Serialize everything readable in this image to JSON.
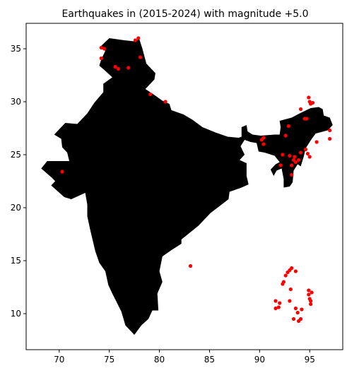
{
  "chart_data": {
    "type": "scatter",
    "title": "Earthquakes in (2015-2024) with magnitude +5.0",
    "xlabel": "",
    "ylabel": "",
    "xlim": [
      66.7,
      98.3
    ],
    "ylim": [
      6.6,
      37.4
    ],
    "xticks": [
      70,
      75,
      80,
      85,
      90,
      95
    ],
    "yticks": [
      10,
      15,
      20,
      25,
      30,
      35
    ],
    "grid": false,
    "legend": "none",
    "colors": {
      "points": "#ff0000",
      "land": "#000000",
      "background": "#ffffff"
    },
    "outline": [
      [
        74.6,
        34.8
      ],
      [
        74.0,
        35.1
      ],
      [
        75.0,
        36.0
      ],
      [
        76.5,
        35.8
      ],
      [
        77.5,
        35.7
      ],
      [
        78.0,
        35.9
      ],
      [
        78.3,
        35.0
      ],
      [
        78.7,
        33.6
      ],
      [
        79.6,
        32.7
      ],
      [
        79.5,
        32.1
      ],
      [
        78.6,
        31.2
      ],
      [
        79.4,
        30.7
      ],
      [
        80.3,
        30.1
      ],
      [
        81.0,
        29.8
      ],
      [
        81.2,
        29.2
      ],
      [
        82.4,
        28.8
      ],
      [
        83.3,
        28.3
      ],
      [
        84.3,
        27.6
      ],
      [
        85.6,
        27.1
      ],
      [
        86.8,
        26.7
      ],
      [
        87.9,
        26.6
      ],
      [
        88.2,
        26.7
      ],
      [
        88.2,
        27.6
      ],
      [
        88.7,
        27.8
      ],
      [
        88.8,
        27.2
      ],
      [
        89.3,
        26.9
      ],
      [
        90.1,
        26.8
      ],
      [
        91.5,
        26.9
      ],
      [
        92.0,
        26.9
      ],
      [
        92.1,
        27.6
      ],
      [
        92.0,
        28.2
      ],
      [
        93.2,
        28.5
      ],
      [
        94.0,
        28.9
      ],
      [
        95.1,
        29.4
      ],
      [
        95.9,
        29.5
      ],
      [
        96.3,
        29.3
      ],
      [
        96.4,
        28.7
      ],
      [
        97.0,
        28.5
      ],
      [
        97.3,
        27.8
      ],
      [
        96.8,
        27.3
      ],
      [
        95.6,
        27.0
      ],
      [
        95.2,
        26.5
      ],
      [
        94.6,
        25.6
      ],
      [
        94.4,
        24.8
      ],
      [
        94.1,
        23.9
      ],
      [
        93.8,
        24.1
      ],
      [
        93.4,
        23.5
      ],
      [
        93.3,
        22.4
      ],
      [
        93.0,
        22.0
      ],
      [
        92.4,
        21.9
      ],
      [
        92.4,
        22.7
      ],
      [
        92.2,
        23.7
      ],
      [
        91.7,
        23.5
      ],
      [
        91.4,
        23.0
      ],
      [
        91.1,
        23.6
      ],
      [
        91.6,
        24.1
      ],
      [
        92.0,
        24.3
      ],
      [
        91.5,
        24.9
      ],
      [
        90.5,
        25.2
      ],
      [
        89.9,
        25.3
      ],
      [
        89.7,
        26.1
      ],
      [
        89.1,
        26.2
      ],
      [
        88.5,
        26.4
      ],
      [
        88.1,
        25.8
      ],
      [
        88.5,
        25.0
      ],
      [
        88.0,
        24.5
      ],
      [
        88.7,
        24.2
      ],
      [
        88.7,
        23.0
      ],
      [
        88.9,
        22.2
      ],
      [
        88.2,
        21.9
      ],
      [
        87.0,
        21.5
      ],
      [
        86.9,
        20.8
      ],
      [
        85.1,
        19.5
      ],
      [
        83.9,
        18.3
      ],
      [
        82.2,
        17.0
      ],
      [
        82.2,
        16.6
      ],
      [
        81.2,
        16.0
      ],
      [
        80.3,
        15.4
      ],
      [
        80.0,
        14.0
      ],
      [
        80.3,
        13.0
      ],
      [
        79.8,
        11.9
      ],
      [
        79.9,
        10.3
      ],
      [
        79.3,
        10.3
      ],
      [
        78.9,
        9.5
      ],
      [
        78.2,
        8.9
      ],
      [
        77.5,
        8.0
      ],
      [
        76.6,
        8.9
      ],
      [
        76.2,
        10.2
      ],
      [
        75.3,
        11.9
      ],
      [
        74.9,
        12.7
      ],
      [
        74.6,
        14.0
      ],
      [
        74.0,
        14.8
      ],
      [
        73.6,
        15.9
      ],
      [
        73.1,
        17.9
      ],
      [
        72.8,
        19.2
      ],
      [
        72.8,
        20.3
      ],
      [
        72.6,
        21.4
      ],
      [
        71.2,
        20.8
      ],
      [
        70.5,
        21.0
      ],
      [
        69.2,
        22.1
      ],
      [
        69.6,
        22.5
      ],
      [
        69.3,
        22.8
      ],
      [
        68.2,
        23.7
      ],
      [
        68.8,
        24.4
      ],
      [
        71.0,
        24.4
      ],
      [
        70.8,
        25.2
      ],
      [
        70.3,
        25.7
      ],
      [
        70.2,
        26.5
      ],
      [
        69.5,
        26.9
      ],
      [
        70.6,
        28.0
      ],
      [
        71.8,
        27.9
      ],
      [
        72.8,
        28.9
      ],
      [
        73.5,
        29.9
      ],
      [
        74.4,
        30.9
      ],
      [
        74.4,
        31.7
      ],
      [
        75.3,
        32.3
      ],
      [
        74.5,
        33.0
      ],
      [
        74.0,
        33.4
      ],
      [
        74.2,
        34.0
      ],
      [
        74.6,
        34.8
      ]
    ],
    "points": [
      {
        "x": 74.2,
        "y": 35.1
      },
      {
        "x": 74.5,
        "y": 35.0
      },
      {
        "x": 77.6,
        "y": 35.8
      },
      {
        "x": 77.9,
        "y": 36.0
      },
      {
        "x": 74.2,
        "y": 34.1
      },
      {
        "x": 78.1,
        "y": 34.2
      },
      {
        "x": 75.6,
        "y": 33.3
      },
      {
        "x": 75.9,
        "y": 33.1
      },
      {
        "x": 76.9,
        "y": 33.2
      },
      {
        "x": 79.1,
        "y": 30.7
      },
      {
        "x": 80.6,
        "y": 30.0
      },
      {
        "x": 70.3,
        "y": 23.4
      },
      {
        "x": 83.1,
        "y": 14.5
      },
      {
        "x": 90.2,
        "y": 26.4
      },
      {
        "x": 90.4,
        "y": 26.0
      },
      {
        "x": 90.4,
        "y": 26.6
      },
      {
        "x": 92.1,
        "y": 24.0
      },
      {
        "x": 92.3,
        "y": 25.0
      },
      {
        "x": 92.6,
        "y": 26.8
      },
      {
        "x": 92.9,
        "y": 27.7
      },
      {
        "x": 93.0,
        "y": 24.9
      },
      {
        "x": 93.2,
        "y": 24.0
      },
      {
        "x": 93.2,
        "y": 23.1
      },
      {
        "x": 93.4,
        "y": 24.5
      },
      {
        "x": 93.5,
        "y": 24.8
      },
      {
        "x": 93.6,
        "y": 24.3
      },
      {
        "x": 93.9,
        "y": 24.5
      },
      {
        "x": 94.1,
        "y": 25.2
      },
      {
        "x": 94.1,
        "y": 29.3
      },
      {
        "x": 94.5,
        "y": 28.4
      },
      {
        "x": 94.7,
        "y": 28.4
      },
      {
        "x": 94.6,
        "y": 25.5
      },
      {
        "x": 94.8,
        "y": 25.1
      },
      {
        "x": 95.0,
        "y": 24.8
      },
      {
        "x": 94.9,
        "y": 30.4
      },
      {
        "x": 95.0,
        "y": 30.0
      },
      {
        "x": 95.1,
        "y": 29.8
      },
      {
        "x": 95.3,
        "y": 29.9
      },
      {
        "x": 95.7,
        "y": 26.2
      },
      {
        "x": 97.0,
        "y": 27.3
      },
      {
        "x": 97.0,
        "y": 26.5
      },
      {
        "x": 93.6,
        "y": 14.0
      },
      {
        "x": 93.2,
        "y": 14.3
      },
      {
        "x": 93.0,
        "y": 14.1
      },
      {
        "x": 92.8,
        "y": 13.9
      },
      {
        "x": 92.6,
        "y": 13.6
      },
      {
        "x": 92.4,
        "y": 13.0
      },
      {
        "x": 92.3,
        "y": 12.8
      },
      {
        "x": 93.1,
        "y": 12.3
      },
      {
        "x": 91.6,
        "y": 11.2
      },
      {
        "x": 92.0,
        "y": 11.0
      },
      {
        "x": 91.9,
        "y": 10.6
      },
      {
        "x": 91.6,
        "y": 10.5
      },
      {
        "x": 93.0,
        "y": 11.2
      },
      {
        "x": 93.6,
        "y": 10.5
      },
      {
        "x": 93.8,
        "y": 10.1
      },
      {
        "x": 94.2,
        "y": 10.4
      },
      {
        "x": 93.4,
        "y": 9.5
      },
      {
        "x": 93.9,
        "y": 9.3
      },
      {
        "x": 94.1,
        "y": 9.5
      },
      {
        "x": 94.9,
        "y": 12.2
      },
      {
        "x": 94.9,
        "y": 11.8
      },
      {
        "x": 95.0,
        "y": 11.4
      },
      {
        "x": 95.1,
        "y": 11.2
      },
      {
        "x": 95.2,
        "y": 12.0
      },
      {
        "x": 95.1,
        "y": 10.9
      }
    ]
  }
}
